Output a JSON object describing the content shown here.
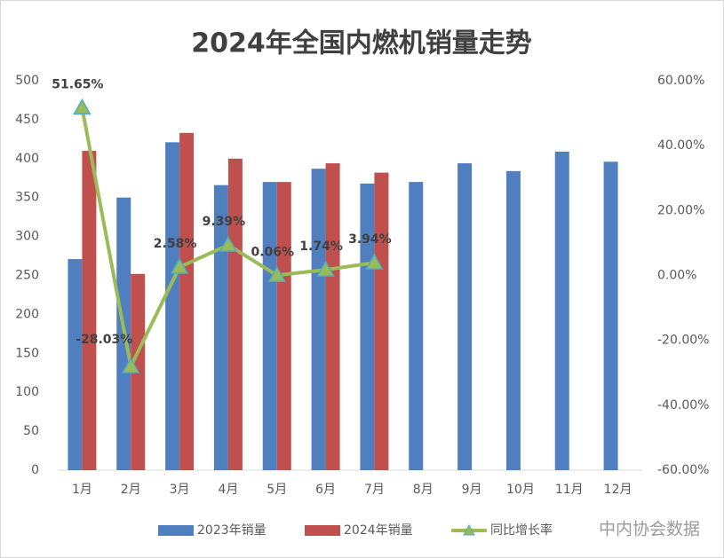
{
  "chart_data": {
    "type": "bar-line",
    "title": "2024年全国内燃机销量走势",
    "categories": [
      "1月",
      "2月",
      "3月",
      "4月",
      "5月",
      "6月",
      "7月",
      "8月",
      "9月",
      "10月",
      "11月",
      "12月"
    ],
    "series": [
      {
        "name": "2023年销量",
        "type": "bar",
        "color": "#4f7fbf",
        "values": [
          271,
          350,
          421,
          366,
          370,
          387,
          368,
          370,
          394,
          384,
          409,
          396
        ]
      },
      {
        "name": "2024年销量",
        "type": "bar",
        "color": "#c0504d",
        "values": [
          410,
          252,
          433,
          400,
          370,
          394,
          382,
          null,
          null,
          null,
          null,
          null
        ]
      },
      {
        "name": "同比增长率",
        "type": "line",
        "axis": "y2",
        "color": "#9bbb59",
        "marker_color": "#4bacc6",
        "values": [
          51.65,
          -28.03,
          2.58,
          9.39,
          0.06,
          1.74,
          3.94,
          null,
          null,
          null,
          null,
          null
        ],
        "value_labels": [
          "51.65%",
          "-28.03%",
          "2.58%",
          "9.39%",
          "0.06%",
          "1.74%",
          "3.94%",
          null,
          null,
          null,
          null,
          null
        ]
      }
    ],
    "ylim": [
      0,
      500
    ],
    "yticks": [
      0,
      50,
      100,
      150,
      200,
      250,
      300,
      350,
      400,
      450,
      500
    ],
    "y2lim": [
      -60,
      60
    ],
    "y2ticks": [
      {
        "value": 60,
        "label": "60.00%"
      },
      {
        "value": 40,
        "label": "40.00%"
      },
      {
        "value": 20,
        "label": "20.00%"
      },
      {
        "value": 0,
        "label": "0.00%"
      },
      {
        "value": -20,
        "label": "-20.00%"
      },
      {
        "value": -40,
        "label": "-40.00%"
      },
      {
        "value": -60,
        "label": "-60.00%"
      }
    ],
    "legend": "bottom",
    "watermark": "中内协会数据"
  }
}
